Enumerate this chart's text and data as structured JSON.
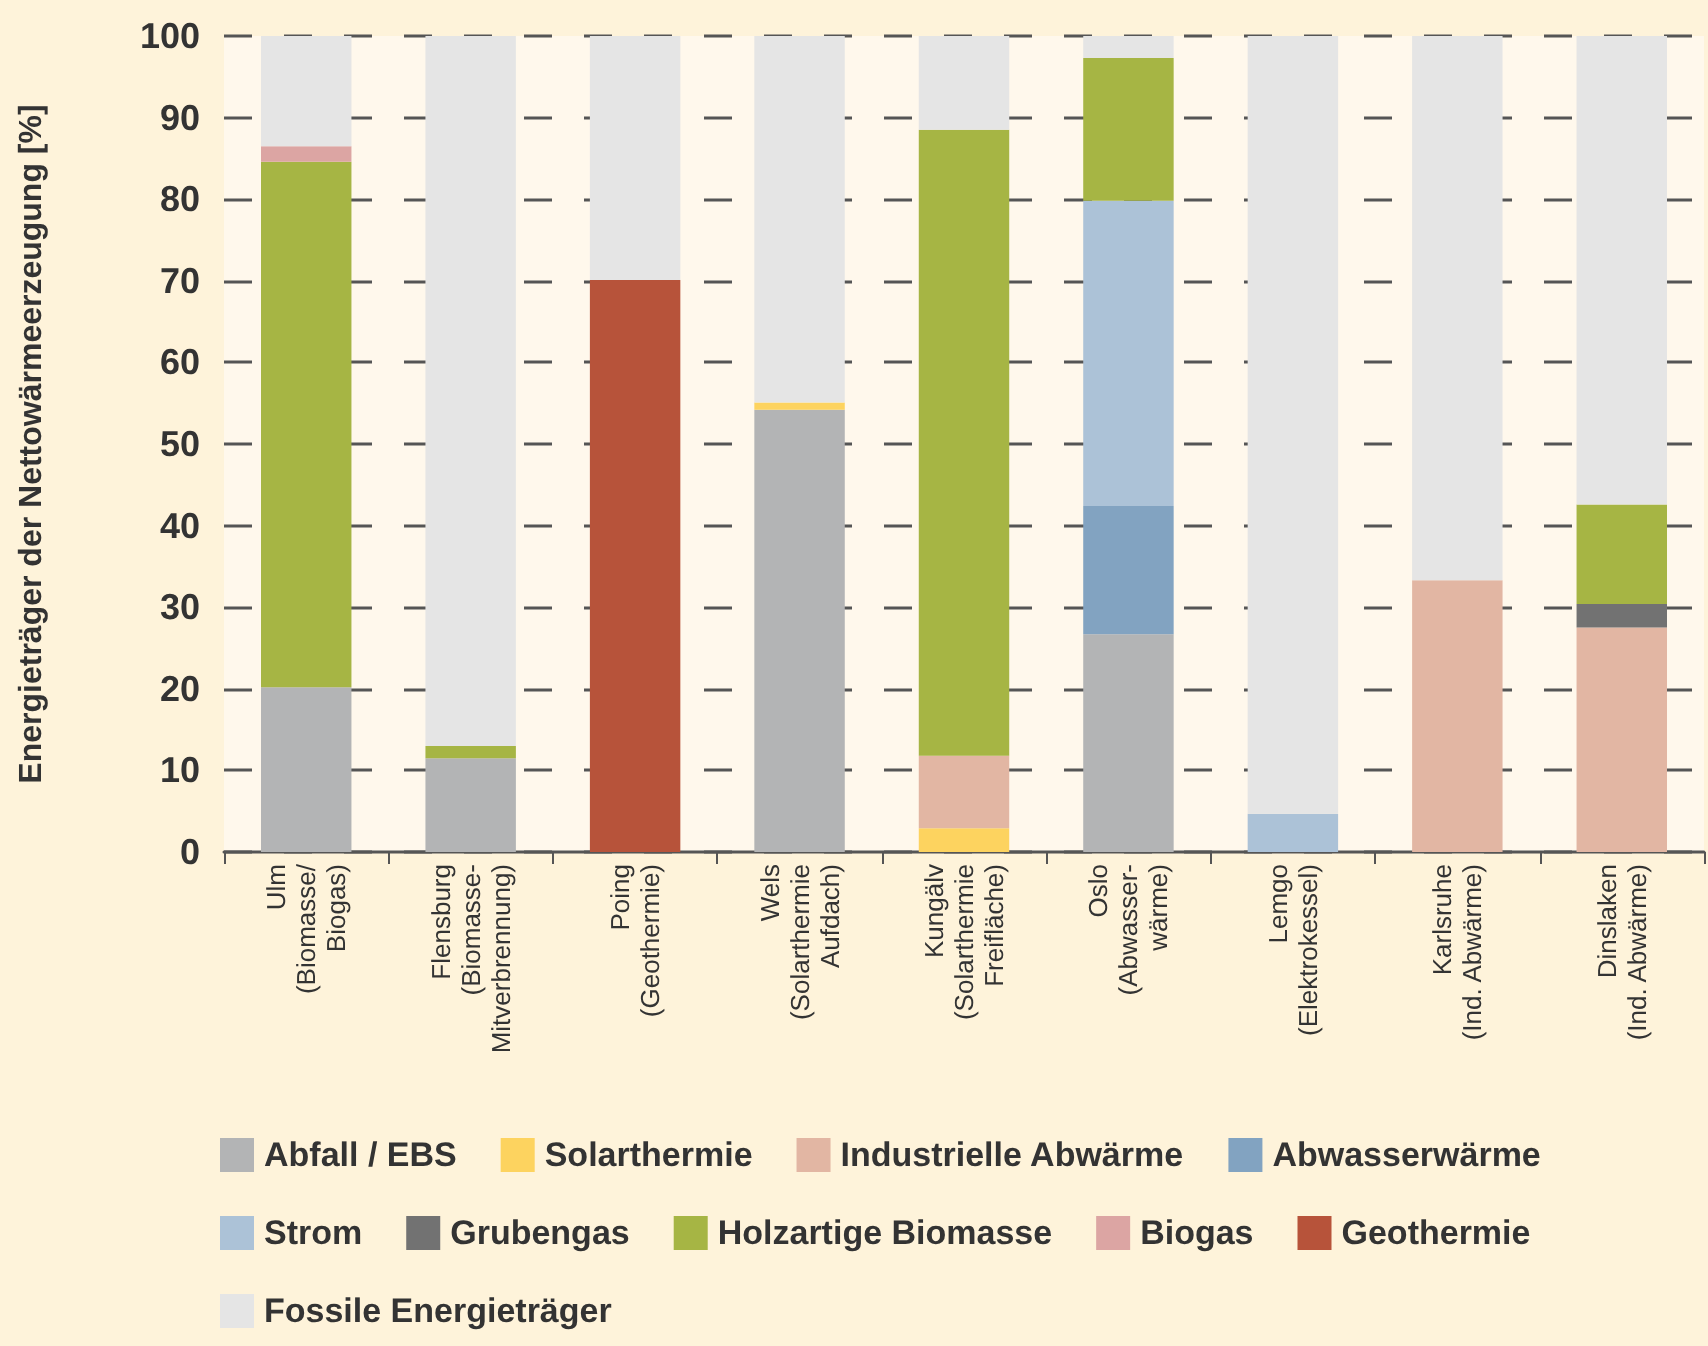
{
  "chart_data": {
    "type": "bar",
    "stacked": true,
    "ylabel": "Energieträger der Nettowärmeerzeugung [%]",
    "categories": [
      "Ulm\n(Biomasse/\nBiogas)",
      "Flensburg\n(Biomasse-\nMitverbrennung)",
      "Poing\n(Geothermie)",
      "Wels\n(Solarthermie\nAufdach)",
      "Kungälv\n(Solarthermie\nFreifläche)",
      "Oslo\n(Abwasser-\nwärme)",
      "Lemgo\n(Elektrokessel)",
      "Karlsruhe\n(Ind. Abwärme)",
      "Dinslaken\n(Ind. Abwärme)"
    ],
    "series": [
      {
        "name": "Abfall / EBS",
        "color": "#b3b4b5",
        "values": [
          20.2,
          11.5,
          0,
          54.2,
          0,
          26.7,
          0,
          0,
          0
        ]
      },
      {
        "name": "Solarthermie",
        "color": "#fdd35f",
        "values": [
          0,
          0,
          0,
          0.9,
          2.9,
          0,
          0,
          0,
          0
        ]
      },
      {
        "name": "Industrielle Abwärme",
        "color": "#e2b6a3",
        "values": [
          0,
          0,
          0,
          0,
          8.9,
          0,
          0,
          33.3,
          27.5
        ]
      },
      {
        "name": "Abwasserwärme",
        "color": "#82a3c1",
        "values": [
          0,
          0,
          0,
          0,
          0,
          15.7,
          0,
          0,
          0
        ]
      },
      {
        "name": "Strom",
        "color": "#acc2d7",
        "values": [
          0,
          0,
          0,
          0,
          0,
          37.4,
          4.7,
          0,
          0
        ]
      },
      {
        "name": "Grubengas",
        "color": "#727272",
        "values": [
          0,
          0,
          0,
          0,
          0,
          0,
          0,
          0,
          2.9
        ]
      },
      {
        "name": "Holzartige Biomasse",
        "color": "#a6b544",
        "values": [
          64.4,
          1.5,
          0,
          0,
          76.7,
          17.5,
          0,
          0,
          12.2
        ]
      },
      {
        "name": "Biogas",
        "color": "#dca5a3",
        "values": [
          1.9,
          0,
          0,
          0,
          0,
          0,
          0,
          0,
          0
        ]
      },
      {
        "name": "Geothermie",
        "color": "#b7533a",
        "values": [
          0,
          0,
          70.1,
          0,
          0,
          0,
          0,
          0,
          0
        ]
      },
      {
        "name": "Fossile Energieträger",
        "color": "#e5e5e5",
        "values": [
          13.5,
          87,
          29.9,
          44.9,
          11.5,
          2.7,
          95.3,
          66.7,
          57.4
        ]
      }
    ],
    "ylim": [
      0,
      100
    ],
    "yticks": [
      0,
      10,
      20,
      30,
      40,
      50,
      60,
      70,
      80,
      90,
      100
    ],
    "grid": "y",
    "legend": "bottom"
  }
}
